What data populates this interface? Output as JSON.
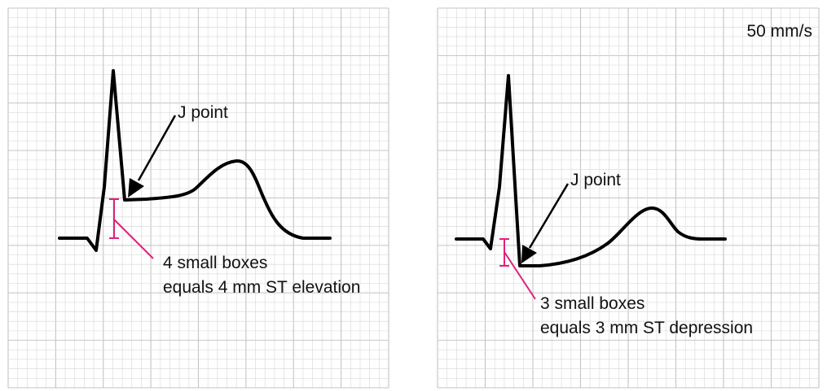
{
  "colors": {
    "grid_minor": "#dcdcdc",
    "grid_major": "#c4c4c4",
    "trace": "#000000",
    "measure": "#e0207a",
    "text": "#111111"
  },
  "left_panel": {
    "j_point_label": "J point",
    "measure_line1": "4 small boxes",
    "measure_line2": "equals 4 mm ST elevation",
    "small_boxes": 4,
    "st_mm": 4
  },
  "right_panel": {
    "speed_label": "50 mm/s",
    "j_point_label": "J point",
    "measure_line1": "3 small boxes",
    "measure_line2": "equals 3 mm ST depression",
    "small_boxes": 3,
    "st_mm": -3
  }
}
